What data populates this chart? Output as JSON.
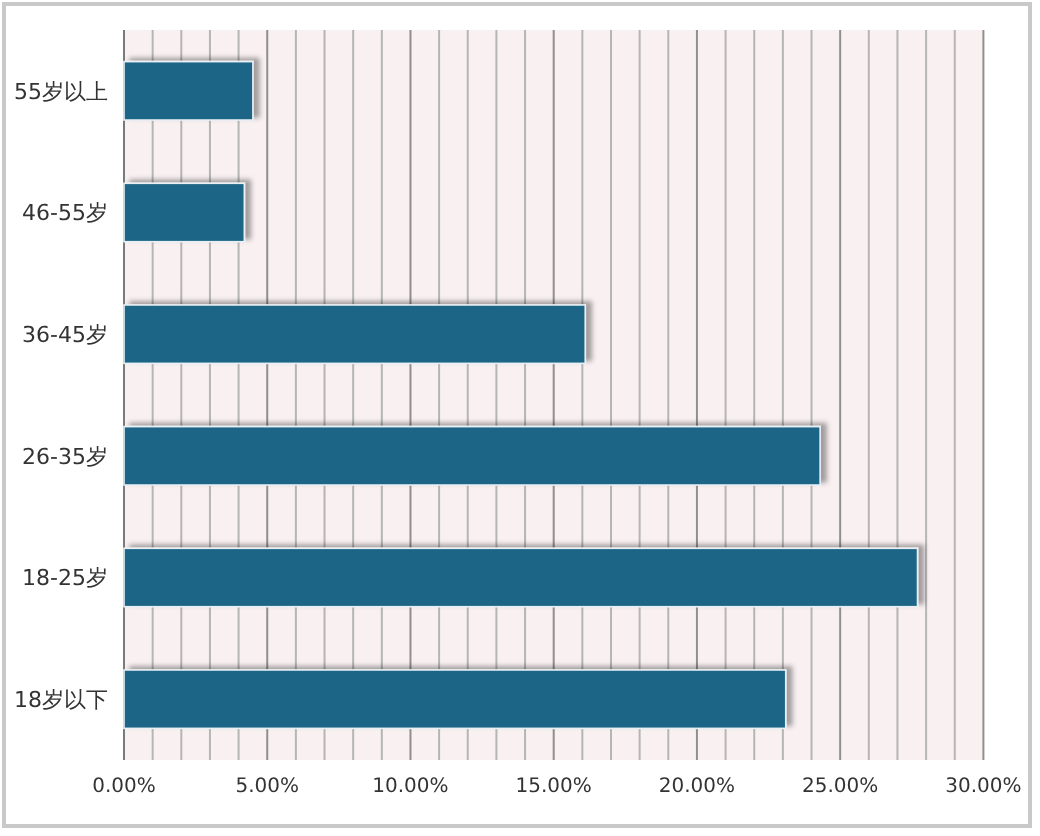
{
  "chart_data": {
    "type": "bar",
    "orientation": "horizontal",
    "categories": [
      "55岁以上",
      "46-55岁",
      "36-45岁",
      "26-35岁",
      "18-25岁",
      "18岁以下"
    ],
    "values": [
      4.5,
      4.2,
      16.1,
      24.3,
      27.7,
      23.1
    ],
    "color": "#1c6586",
    "xlim": [
      0,
      30
    ],
    "xticks": [
      {
        "value": 0,
        "label": "0.00%"
      },
      {
        "value": 1,
        "label": null
      },
      {
        "value": 2,
        "label": null
      },
      {
        "value": 3,
        "label": null
      },
      {
        "value": 4,
        "label": null
      },
      {
        "value": 5,
        "label": "5.00%"
      },
      {
        "value": 6,
        "label": null
      },
      {
        "value": 7,
        "label": null
      },
      {
        "value": 8,
        "label": null
      },
      {
        "value": 9,
        "label": null
      },
      {
        "value": 10,
        "label": "10.00%"
      },
      {
        "value": 11,
        "label": null
      },
      {
        "value": 12,
        "label": null
      },
      {
        "value": 13,
        "label": null
      },
      {
        "value": 14,
        "label": null
      },
      {
        "value": 15,
        "label": "15.00%"
      },
      {
        "value": 16,
        "label": null
      },
      {
        "value": 17,
        "label": null
      },
      {
        "value": 18,
        "label": null
      },
      {
        "value": 19,
        "label": null
      },
      {
        "value": 20,
        "label": "20.00%"
      },
      {
        "value": 21,
        "label": null
      },
      {
        "value": 22,
        "label": null
      },
      {
        "value": 23,
        "label": null
      },
      {
        "value": 24,
        "label": null
      },
      {
        "value": 25,
        "label": "25.00%"
      },
      {
        "value": 26,
        "label": null
      },
      {
        "value": 27,
        "label": null
      },
      {
        "value": 28,
        "label": null
      },
      {
        "value": 29,
        "label": null
      },
      {
        "value": 30,
        "label": "30.00%"
      }
    ],
    "grid": "x"
  }
}
